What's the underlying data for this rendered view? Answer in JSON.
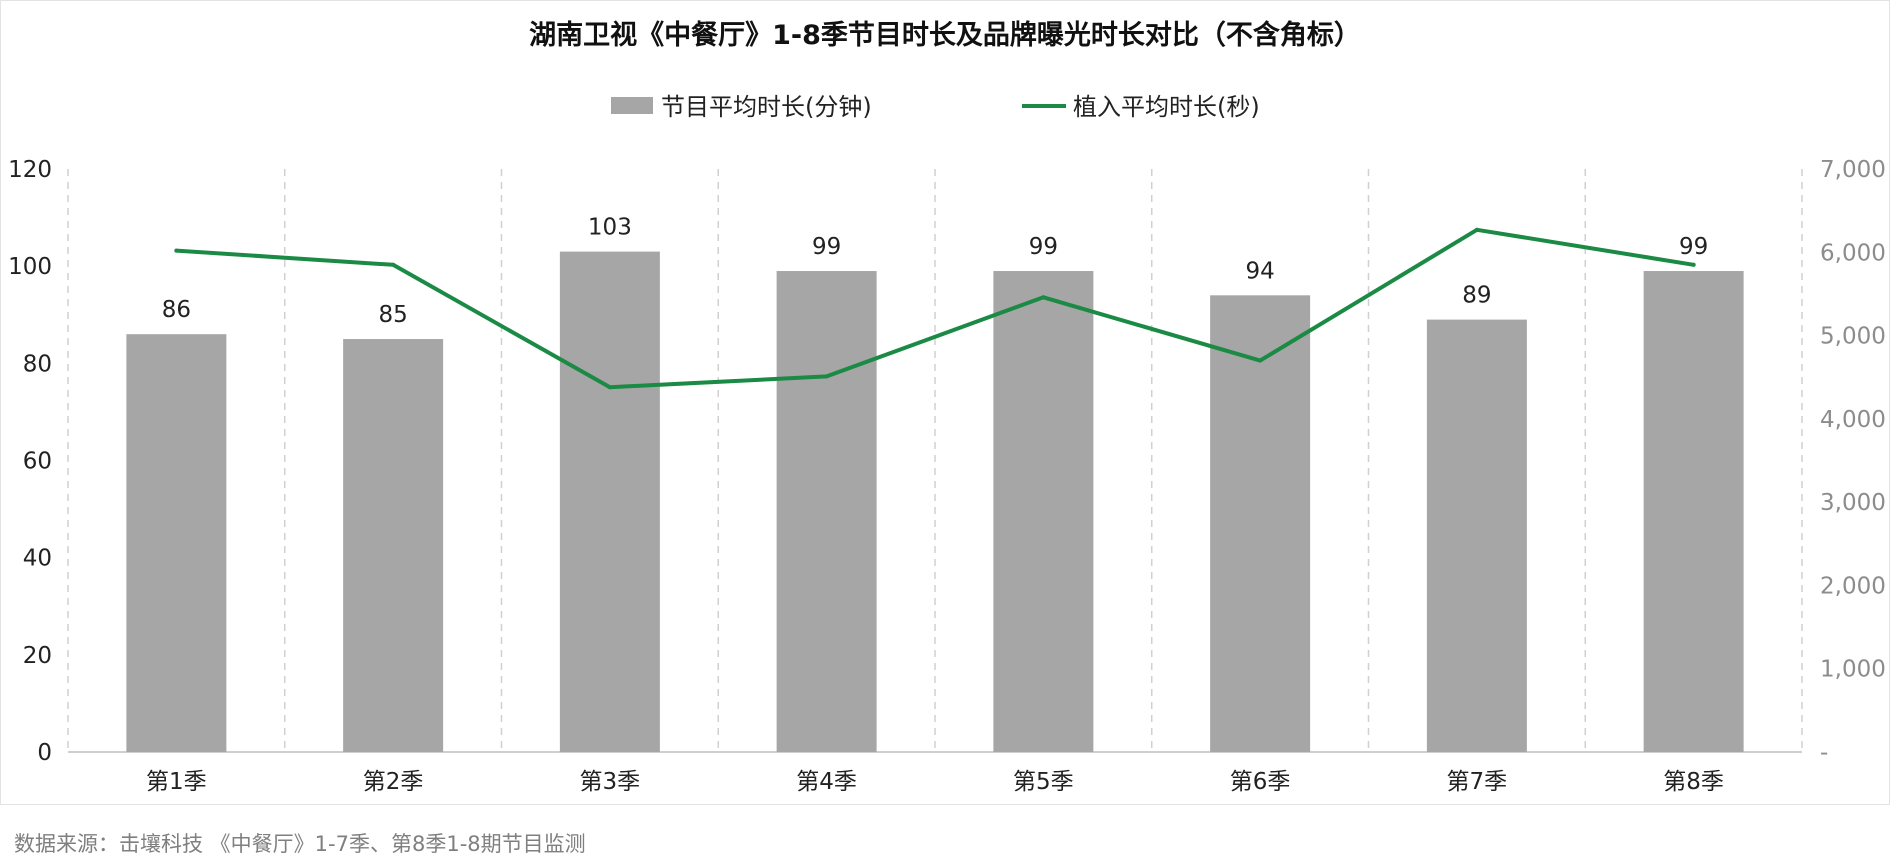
{
  "chart_data": {
    "type": "bar",
    "title": "湖南卫视《中餐厅》1-8季节目时长及品牌曝光时长对比（不含角标）",
    "categories": [
      "第1季",
      "第2季",
      "第3季",
      "第4季",
      "第5季",
      "第6季",
      "第7季",
      "第8季"
    ],
    "series": [
      {
        "name": "节目平均时长(分钟)",
        "type": "bar",
        "axis": "left",
        "values": [
          86,
          85,
          103,
          99,
          99,
          94,
          89,
          99
        ],
        "data_labels": [
          "86",
          "85",
          "103",
          "99",
          "99",
          "94",
          "89",
          "99"
        ],
        "color": "#a6a6a6"
      },
      {
        "name": "植入平均时长(秒)",
        "type": "line",
        "axis": "right",
        "values": [
          6020,
          5850,
          4380,
          4510,
          5460,
          4700,
          6270,
          5850
        ],
        "color": "#1a8a44"
      }
    ],
    "y_left": {
      "min": 0,
      "max": 120,
      "ticks": [
        "0",
        "20",
        "40",
        "60",
        "80",
        "100",
        "120"
      ]
    },
    "y_right": {
      "min": 0,
      "max": 7000,
      "ticks": [
        "-",
        "1,000",
        "2,000",
        "3,000",
        "4,000",
        "5,000",
        "6,000",
        "7,000"
      ]
    },
    "legend_position": "top-center",
    "grid": "vertical-dashed"
  },
  "source_note": "数据来源：击壤科技 《中餐厅》1-7季、第8季1-8期节目监测"
}
